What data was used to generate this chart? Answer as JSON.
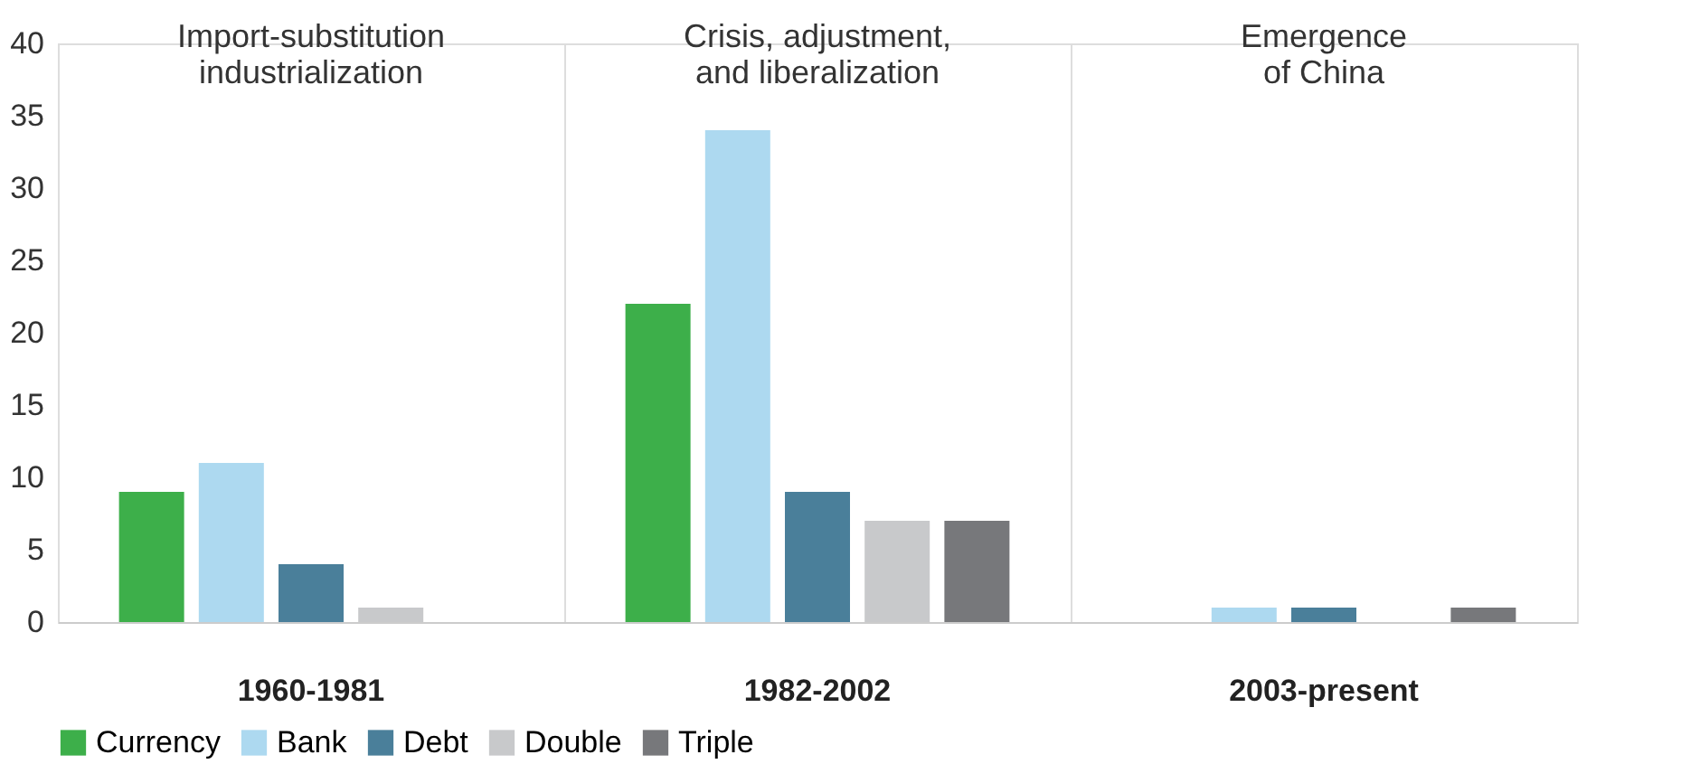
{
  "chart_data": {
    "type": "bar",
    "categories": [
      "1960-1981",
      "1982-2002",
      "2003-present"
    ],
    "series": [
      {
        "name": "Currency",
        "color": "#3daf4a",
        "values": [
          9,
          22,
          0
        ]
      },
      {
        "name": "Bank",
        "color": "#add9f0",
        "values": [
          11,
          34,
          1
        ]
      },
      {
        "name": "Debt",
        "color": "#4a7f9a",
        "values": [
          4,
          9,
          1
        ]
      },
      {
        "name": "Double",
        "color": "#c8c9cb",
        "values": [
          1,
          7,
          0
        ]
      },
      {
        "name": "Triple",
        "color": "#77787b",
        "values": [
          0,
          7,
          1
        ]
      }
    ],
    "ylim": [
      0,
      40
    ],
    "yticks": [
      0,
      5,
      10,
      15,
      20,
      25,
      30,
      35,
      40
    ],
    "grid": "x",
    "legend": "bottom",
    "annotations": [
      "Import-substitution\nindustrialization",
      "Crisis, adjustment,\nand liberalization",
      "Emergence\nof China"
    ]
  }
}
